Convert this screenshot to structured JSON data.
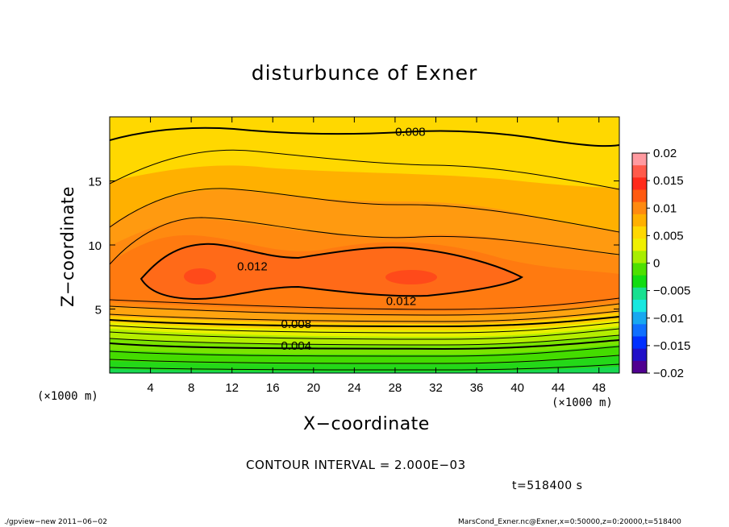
{
  "chart_data": {
    "type": "heatmap",
    "title": "disturbunce of Exner",
    "xlabel": "X−coordinate",
    "ylabel": "Z−coordinate",
    "x_unit": "(×1000 m)",
    "y_unit": "(×1000 m)",
    "xlim": [
      0,
      50
    ],
    "ylim": [
      0,
      20
    ],
    "x_ticks": [
      4,
      8,
      12,
      16,
      20,
      24,
      28,
      32,
      36,
      40,
      44,
      48
    ],
    "y_ticks": [
      5,
      10,
      15
    ],
    "colorbar": {
      "min": -0.02,
      "max": 0.02,
      "tick_labels": [
        "0.02",
        "0.015",
        "0.01",
        "0.005",
        "0",
        "−0.005",
        "−0.01",
        "−0.015",
        "−0.02"
      ],
      "tick_values": [
        0.02,
        0.015,
        0.01,
        0.005,
        0,
        -0.005,
        -0.01,
        -0.015,
        -0.02
      ],
      "colors": [
        "#ff9aa0",
        "#ff5a4a",
        "#ff2a1a",
        "#ff5a10",
        "#ff8a10",
        "#ffb000",
        "#ffd800",
        "#f0f000",
        "#a8ee00",
        "#4ee000",
        "#12dc12",
        "#18e090",
        "#18e8e0",
        "#18a8f0",
        "#1070ff",
        "#0030ff",
        "#2010c8",
        "#500090"
      ]
    },
    "contours": [
      {
        "level": 0.012,
        "label": "0.012"
      },
      {
        "level": 0.008,
        "label": "0.008"
      },
      {
        "level": 0.004,
        "label": "0.004"
      }
    ],
    "contour_labels": [
      {
        "x": 29.5,
        "z": 18.9,
        "text": "0.008"
      },
      {
        "x": 14.0,
        "z": 8.4,
        "text": "0.012"
      },
      {
        "x": 28.6,
        "z": 5.7,
        "text": "0.012"
      },
      {
        "x": 18.3,
        "z": 3.9,
        "text": "0.008"
      },
      {
        "x": 18.3,
        "z": 2.2,
        "text": "0.004"
      }
    ],
    "field_summary": "Exner disturbance maximum (~0.015) at z≈7.5 near x≈8.5 and x≈29; decreasing upward to ~0.007 at top and downward to ~0 near the ground."
  },
  "contour_interval_text": "CONTOUR INTERVAL = 2.000E−03",
  "time_text": "t=518400 s",
  "footer_left": "./gpview−new   2011−06−02",
  "footer_right": "MarsCond_Exner.nc@Exner,x=0:50000,z=0:20000,t=518400"
}
